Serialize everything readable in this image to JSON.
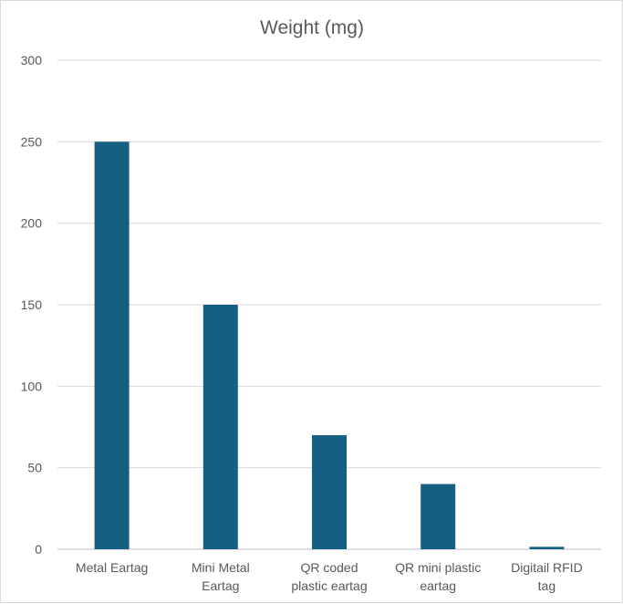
{
  "chart_data": {
    "type": "bar",
    "title": "Weight (mg)",
    "xlabel": "",
    "ylabel": "",
    "categories": [
      [
        "Metal Eartag"
      ],
      [
        "Mini Metal",
        "Eartag"
      ],
      [
        "QR coded",
        "plastic eartag"
      ],
      [
        "QR mini plastic",
        "eartag"
      ],
      [
        "Digitail RFID",
        "tag"
      ]
    ],
    "values": [
      250,
      150,
      70,
      40,
      1.5
    ],
    "ylim": [
      0,
      300
    ],
    "yticks": [
      0,
      50,
      100,
      150,
      200,
      250,
      300
    ],
    "grid": true,
    "legend": "none",
    "colors": {
      "bar": "#156082",
      "grid": "#d9d9d9",
      "text": "#595959",
      "axis": "#bfbfbf"
    }
  }
}
